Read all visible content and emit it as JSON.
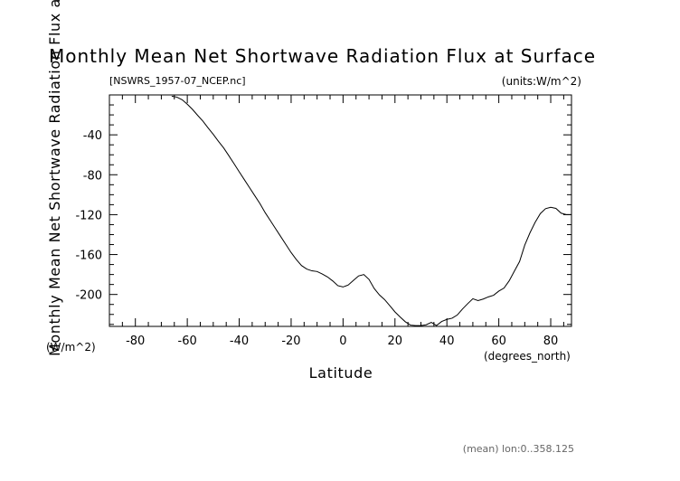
{
  "chart_data": {
    "type": "line",
    "title": "Monthly Mean Net Shortwave Radiation Flux at Surface",
    "file_label": "[NSWRS_1957-07_NCEP.nc]",
    "units_label": "(units:W/m^2)",
    "xlabel": "Latitude",
    "x_units_label": "(degrees_north)",
    "ylabel": "Monthly Mean Net Shortwave Radiation Flux at Surface",
    "y_units_label": "(W/m^2)",
    "footer_label": "(mean) lon:0..358.125",
    "xlim": [
      -90,
      88
    ],
    "ylim": [
      -232,
      0
    ],
    "x_ticks": [
      -80,
      -60,
      -40,
      -20,
      0,
      20,
      40,
      60,
      80
    ],
    "x_tick_labels": [
      "-80",
      "-60",
      "-40",
      "-20",
      "0",
      "20",
      "40",
      "60",
      "80"
    ],
    "y_ticks": [
      -40,
      -80,
      -120,
      -160,
      -200
    ],
    "y_tick_labels": [
      "-40",
      "-80",
      "-120",
      "-160",
      "-200"
    ],
    "grid": false,
    "line_color": "#000000",
    "series": [
      {
        "x": [
          -66,
          -64,
          -62,
          -60,
          -58,
          -56,
          -54,
          -52,
          -50,
          -48,
          -46,
          -44,
          -42,
          -40,
          -38,
          -36,
          -34,
          -32,
          -30,
          -28,
          -26,
          -24,
          -22,
          -20,
          -18,
          -16,
          -14,
          -12,
          -10,
          -8,
          -6,
          -4,
          -2,
          0,
          2,
          4,
          6,
          8,
          10,
          12,
          14,
          16,
          18,
          20,
          22,
          24,
          26,
          28,
          30,
          32,
          34,
          36,
          38,
          40,
          42,
          44,
          46,
          48,
          50,
          52,
          54,
          56,
          58,
          60,
          62,
          64,
          66,
          68,
          70,
          72,
          74,
          76,
          78,
          80,
          82,
          84,
          86,
          88
        ],
        "y": [
          -1.3,
          -2.2,
          -4.8,
          -9.3,
          -14.5,
          -20.5,
          -26.2,
          -33.0,
          -39.5,
          -46.5,
          -53.1,
          -60.9,
          -68.9,
          -77.0,
          -85.0,
          -93.0,
          -101.0,
          -109.0,
          -118.0,
          -126.0,
          -134.0,
          -142.0,
          -150.0,
          -158.0,
          -165.0,
          -171.0,
          -174.5,
          -176.3,
          -177.0,
          -179.5,
          -182.4,
          -186.4,
          -191.2,
          -192.5,
          -190.5,
          -185.9,
          -181.4,
          -180.0,
          -184.9,
          -194.0,
          -200.4,
          -205.1,
          -211.2,
          -217.5,
          -222.6,
          -227.4,
          -230.7,
          -231.2,
          -231.2,
          -230.4,
          -228.0,
          -231.1,
          -227.1,
          -225.0,
          -223.8,
          -220.6,
          -214.6,
          -209.3,
          -204.3,
          -206.1,
          -204.6,
          -202.4,
          -200.8,
          -196.6,
          -193.6,
          -186.3,
          -176.6,
          -167.0,
          -150.5,
          -138.2,
          -127.7,
          -118.9,
          -114.0,
          -112.6,
          -113.7,
          -118.5,
          -120.0,
          -120.0
        ]
      }
    ]
  }
}
